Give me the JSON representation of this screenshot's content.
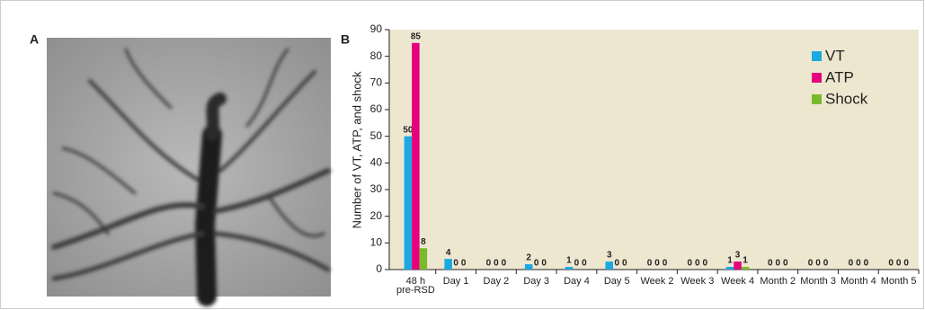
{
  "panel_a": {
    "label": "A"
  },
  "chart_data": {
    "type": "bar",
    "panel_label": "B",
    "y_label": "Number of VT, ATP, and shock",
    "categories": [
      "48 h\npre-RSD",
      "Day 1",
      "Day 2",
      "Day 3",
      "Day 4",
      "Day 5",
      "Week 2",
      "Week 3",
      "Week 4",
      "Month 2",
      "Month 3",
      "Month 4",
      "Month 5"
    ],
    "series": [
      {
        "name": "VT",
        "color": "#1aa9e0",
        "values": [
          50,
          4,
          0,
          2,
          1,
          3,
          0,
          0,
          1,
          0,
          0,
          0,
          0
        ]
      },
      {
        "name": "ATP",
        "color": "#e5007e",
        "values": [
          85,
          0,
          0,
          0,
          0,
          0,
          0,
          0,
          3,
          0,
          0,
          0,
          0
        ]
      },
      {
        "name": "Shock",
        "color": "#7ab929",
        "values": [
          8,
          0,
          0,
          0,
          0,
          0,
          0,
          0,
          1,
          0,
          0,
          0,
          0
        ]
      }
    ],
    "ylim": [
      0,
      90
    ],
    "yticks": [
      0,
      10,
      20,
      30,
      40,
      50,
      60,
      70,
      80,
      90
    ],
    "background": "#ede7d0",
    "legend": "top-right"
  }
}
